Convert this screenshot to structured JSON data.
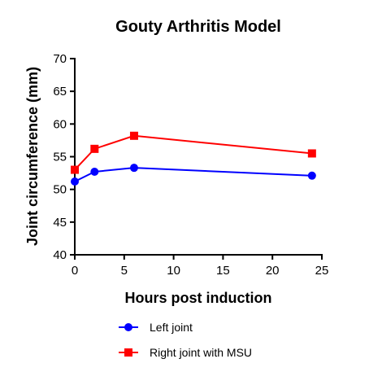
{
  "chart_data": {
    "type": "line",
    "title": "Gouty Arthritis Model",
    "xlabel": "Hours post induction",
    "ylabel": "Joint circumference (mm)",
    "xlim": [
      0,
      25
    ],
    "ylim": [
      40,
      70
    ],
    "xticks": [
      0,
      5,
      10,
      15,
      20,
      25
    ],
    "yticks": [
      40,
      45,
      50,
      55,
      60,
      65,
      70
    ],
    "x": [
      0,
      2,
      6,
      24
    ],
    "series": [
      {
        "name": "Left joint",
        "values": [
          51.2,
          52.7,
          53.3,
          52.1
        ],
        "color": "#0000ff",
        "marker": "circle"
      },
      {
        "name": "Right joint with MSU",
        "values": [
          53.0,
          56.2,
          58.2,
          55.5
        ],
        "color": "#ff0000",
        "marker": "square"
      }
    ],
    "grid": false,
    "legend_position": "bottom"
  }
}
